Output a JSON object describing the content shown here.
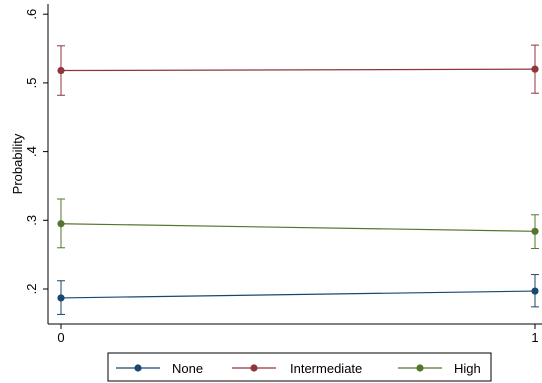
{
  "chart_data": {
    "type": "line",
    "title": "",
    "xlabel": "",
    "ylabel": "Probability",
    "xlim": [
      0,
      1
    ],
    "ylim": [
      0.16,
      0.6
    ],
    "x": [
      0,
      1
    ],
    "x_ticks": [
      0,
      1
    ],
    "x_tick_labels": [
      "0",
      "1"
    ],
    "y_ticks": [
      0.2,
      0.3,
      0.4,
      0.5,
      0.6
    ],
    "y_tick_labels": [
      ".2",
      ".3",
      ".4",
      ".5",
      ".6"
    ],
    "grid": false,
    "legend_position": "bottom",
    "series": [
      {
        "name": "None",
        "color": "#1a476f",
        "values": [
          0.187,
          0.197
        ],
        "ci_low": [
          0.163,
          0.174
        ],
        "ci_high": [
          0.212,
          0.221
        ]
      },
      {
        "name": "Intermediate",
        "color": "#90353b",
        "values": [
          0.518,
          0.52
        ],
        "ci_low": [
          0.482,
          0.485
        ],
        "ci_high": [
          0.554,
          0.555
        ]
      },
      {
        "name": "High",
        "color": "#55752f",
        "values": [
          0.295,
          0.284
        ],
        "ci_low": [
          0.26,
          0.259
        ],
        "ci_high": [
          0.331,
          0.308
        ]
      }
    ]
  }
}
